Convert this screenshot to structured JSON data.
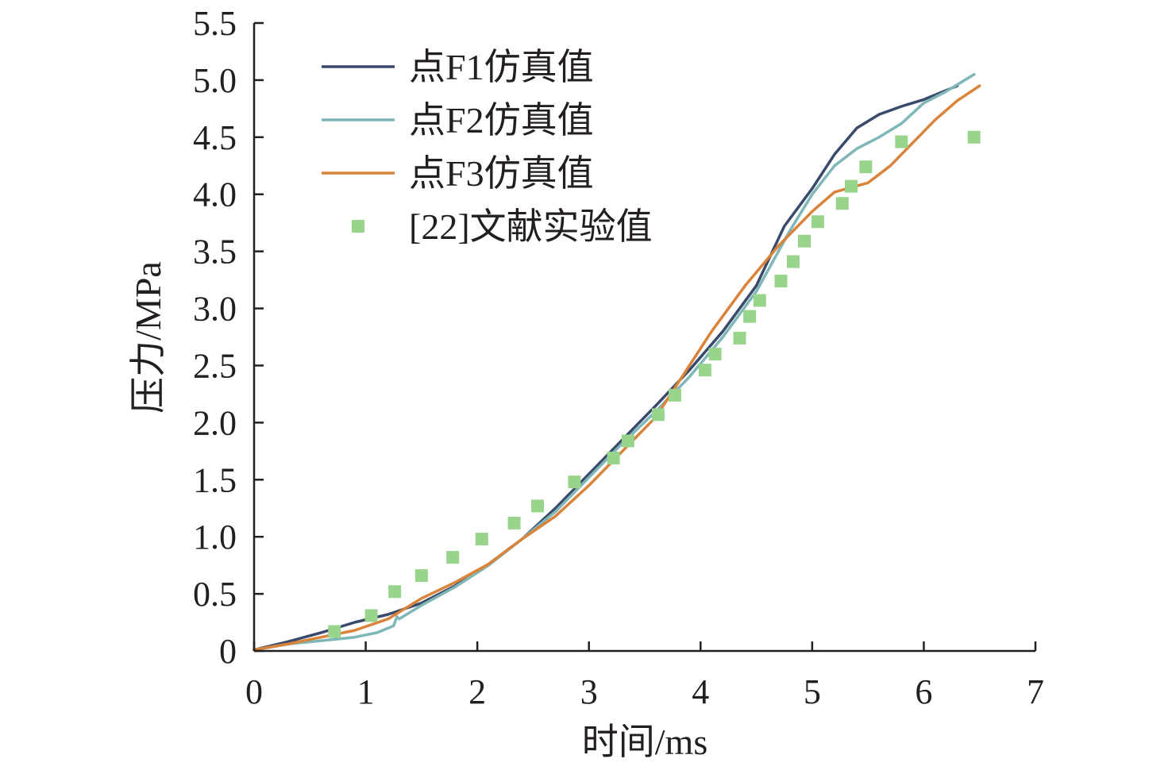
{
  "chart_data": {
    "type": "line",
    "xlabel": "时间/ms",
    "ylabel": "压力/MPa",
    "xlim": [
      0,
      7
    ],
    "ylim": [
      0,
      5.5
    ],
    "x_ticks": [
      "0",
      "1",
      "2",
      "3",
      "4",
      "5",
      "6",
      "7"
    ],
    "y_ticks": [
      "0",
      "0.5",
      "1.0",
      "1.5",
      "2.0",
      "2.5",
      "3.0",
      "3.5",
      "4.0",
      "4.5",
      "5.0",
      "5.5"
    ],
    "grid": false,
    "legend_position": "top-left",
    "series": [
      {
        "name": "点F1仿真值",
        "kind": "line",
        "color": "#3a4a6b",
        "points": [
          [
            0,
            0.01
          ],
          [
            0.3,
            0.08
          ],
          [
            0.6,
            0.16
          ],
          [
            0.9,
            0.25
          ],
          [
            1.2,
            0.32
          ],
          [
            1.5,
            0.42
          ],
          [
            1.8,
            0.57
          ],
          [
            2.1,
            0.76
          ],
          [
            2.4,
            0.98
          ],
          [
            2.7,
            1.25
          ],
          [
            3.0,
            1.55
          ],
          [
            3.3,
            1.85
          ],
          [
            3.6,
            2.15
          ],
          [
            3.9,
            2.46
          ],
          [
            4.2,
            2.8
          ],
          [
            4.5,
            3.2
          ],
          [
            4.75,
            3.72
          ],
          [
            5.0,
            4.05
          ],
          [
            5.2,
            4.35
          ],
          [
            5.4,
            4.58
          ],
          [
            5.6,
            4.7
          ],
          [
            5.8,
            4.77
          ],
          [
            6.0,
            4.83
          ],
          [
            6.3,
            4.95
          ]
        ]
      },
      {
        "name": "点F2仿真值",
        "kind": "line",
        "color": "#7fb6b8",
        "points": [
          [
            0,
            0.01
          ],
          [
            0.3,
            0.06
          ],
          [
            0.6,
            0.09
          ],
          [
            0.9,
            0.12
          ],
          [
            1.1,
            0.16
          ],
          [
            1.25,
            0.22
          ],
          [
            1.28,
            0.3
          ],
          [
            1.3,
            0.28
          ],
          [
            1.5,
            0.4
          ],
          [
            1.8,
            0.56
          ],
          [
            2.1,
            0.75
          ],
          [
            2.4,
            0.98
          ],
          [
            2.7,
            1.22
          ],
          [
            3.0,
            1.52
          ],
          [
            3.3,
            1.82
          ],
          [
            3.6,
            2.1
          ],
          [
            3.9,
            2.4
          ],
          [
            4.2,
            2.75
          ],
          [
            4.5,
            3.15
          ],
          [
            4.8,
            3.68
          ],
          [
            5.0,
            4.0
          ],
          [
            5.2,
            4.25
          ],
          [
            5.4,
            4.4
          ],
          [
            5.6,
            4.5
          ],
          [
            5.8,
            4.62
          ],
          [
            6.0,
            4.8
          ],
          [
            6.2,
            4.9
          ],
          [
            6.45,
            5.05
          ]
        ]
      },
      {
        "name": "点F3仿真值",
        "kind": "line",
        "color": "#d9843a",
        "points": [
          [
            0,
            0.01
          ],
          [
            0.3,
            0.06
          ],
          [
            0.6,
            0.12
          ],
          [
            0.9,
            0.18
          ],
          [
            1.2,
            0.28
          ],
          [
            1.5,
            0.46
          ],
          [
            1.8,
            0.6
          ],
          [
            2.1,
            0.76
          ],
          [
            2.4,
            0.98
          ],
          [
            2.7,
            1.18
          ],
          [
            3.0,
            1.45
          ],
          [
            3.3,
            1.75
          ],
          [
            3.6,
            2.05
          ],
          [
            3.8,
            2.35
          ],
          [
            4.1,
            2.8
          ],
          [
            4.4,
            3.2
          ],
          [
            4.7,
            3.55
          ],
          [
            5.0,
            3.85
          ],
          [
            5.2,
            4.02
          ],
          [
            5.5,
            4.1
          ],
          [
            5.7,
            4.25
          ],
          [
            5.9,
            4.45
          ],
          [
            6.1,
            4.65
          ],
          [
            6.3,
            4.82
          ],
          [
            6.5,
            4.95
          ]
        ]
      },
      {
        "name": "[22]文献实验值",
        "kind": "scatter",
        "color": "#98d48c",
        "points": [
          [
            0.72,
            0.17
          ],
          [
            1.05,
            0.31
          ],
          [
            1.26,
            0.52
          ],
          [
            1.5,
            0.66
          ],
          [
            1.78,
            0.82
          ],
          [
            2.04,
            0.98
          ],
          [
            2.33,
            1.12
          ],
          [
            2.54,
            1.27
          ],
          [
            2.87,
            1.48
          ],
          [
            3.22,
            1.69
          ],
          [
            3.35,
            1.84
          ],
          [
            3.62,
            2.07
          ],
          [
            3.77,
            2.24
          ],
          [
            4.04,
            2.46
          ],
          [
            4.13,
            2.6
          ],
          [
            4.35,
            2.74
          ],
          [
            4.44,
            2.93
          ],
          [
            4.53,
            3.07
          ],
          [
            4.72,
            3.24
          ],
          [
            4.83,
            3.41
          ],
          [
            4.93,
            3.59
          ],
          [
            5.05,
            3.76
          ],
          [
            5.27,
            3.92
          ],
          [
            5.35,
            4.07
          ],
          [
            5.48,
            4.24
          ],
          [
            5.8,
            4.46
          ],
          [
            6.45,
            4.5
          ]
        ]
      }
    ]
  }
}
